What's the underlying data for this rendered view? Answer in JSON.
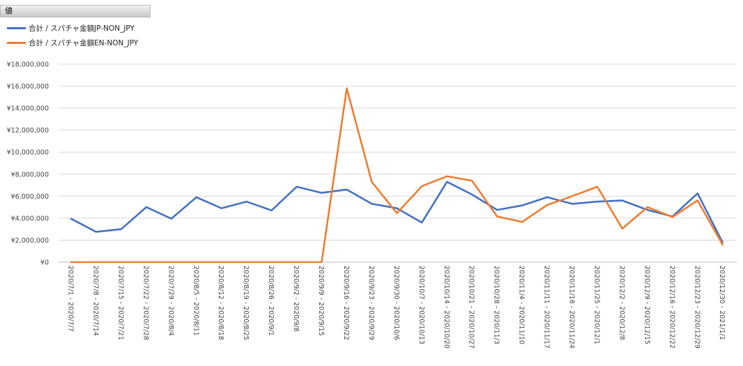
{
  "field_button": {
    "label": "値"
  },
  "chart_data": {
    "type": "line",
    "title": "",
    "xlabel": "",
    "ylabel": "",
    "ylim": [
      0,
      18000000
    ],
    "y_ticks": [
      0,
      2000000,
      4000000,
      6000000,
      8000000,
      10000000,
      12000000,
      14000000,
      16000000,
      18000000
    ],
    "y_tick_labels": [
      "¥0",
      "¥2,000,000",
      "¥4,000,000",
      "¥6,000,000",
      "¥8,000,000",
      "¥10,000,000",
      "¥12,000,000",
      "¥14,000,000",
      "¥16,000,000",
      "¥18,000,000"
    ],
    "grid": true,
    "legend_position": "top-left",
    "categories": [
      "2020/7/1 - 2020/7/7",
      "2020/7/8 - 2020/7/14",
      "2020/7/15 - 2020/7/21",
      "2020/7/22 - 2020/7/28",
      "2020/7/29 - 2020/8/4",
      "2020/8/5 - 2020/8/11",
      "2020/8/12 - 2020/8/18",
      "2020/8/19 - 2020/8/25",
      "2020/8/26 - 2020/9/1",
      "2020/9/2 - 2020/9/8",
      "2020/9/9 - 2020/9/15",
      "2020/9/16 - 2020/9/22",
      "2020/9/23 - 2020/9/29",
      "2020/9/30 - 2020/10/6",
      "2020/10/7 - 2020/10/13",
      "2020/10/14 - 2020/10/20",
      "2020/10/21 - 2020/10/27",
      "2020/10/28 - 2020/11/3",
      "2020/11/4 - 2020/11/10",
      "2020/11/11 - 2020/11/17",
      "2020/11/18 - 2020/11/24",
      "2020/11/25 - 2020/12/1",
      "2020/12/2 - 2020/12/8",
      "2020/12/9 - 2020/12/15",
      "2020/12/16 - 2020/12/22",
      "2020/12/23 - 2020/12/29",
      "2020/12/30 - 2021/1/1"
    ],
    "series": [
      {
        "name": "合計 / スパチャ金額JP-NON_JPY",
        "color": "#4472C4",
        "values": [
          3950000,
          2750000,
          3000000,
          5000000,
          3950000,
          5900000,
          4900000,
          5500000,
          4700000,
          6850000,
          6300000,
          6600000,
          5300000,
          4900000,
          3600000,
          7300000,
          6150000,
          4750000,
          5150000,
          5900000,
          5300000,
          5500000,
          5600000,
          4750000,
          4150000,
          6250000,
          1800000
        ]
      },
      {
        "name": "合計 / スパチャ金額EN-NON_JPY",
        "color": "#ED7D31",
        "values": [
          0,
          0,
          0,
          0,
          0,
          0,
          0,
          0,
          0,
          0,
          0,
          15800000,
          7300000,
          4450000,
          6900000,
          7800000,
          7400000,
          4150000,
          3650000,
          5200000,
          6000000,
          6850000,
          3050000,
          5000000,
          4100000,
          5600000,
          1600000
        ]
      }
    ]
  }
}
